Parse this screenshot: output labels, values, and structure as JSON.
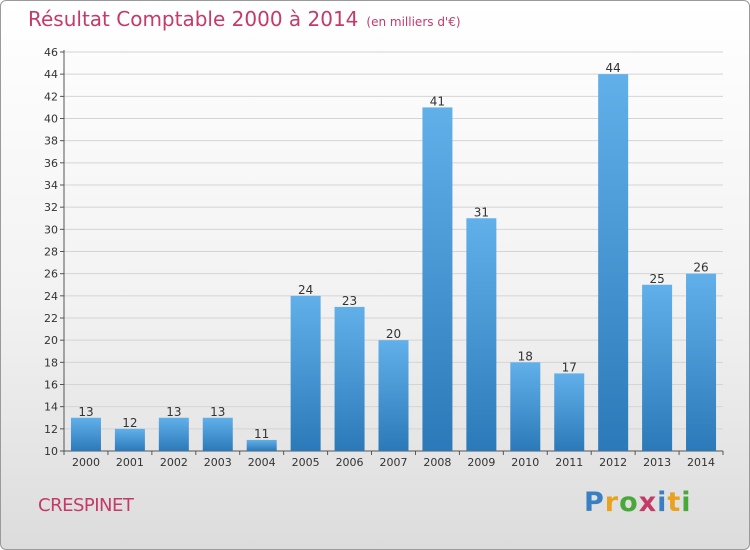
{
  "header": {
    "title": "Résultat Comptable 2000 à 2014",
    "subtitle": "(en milliers d'€)"
  },
  "footer": {
    "commune": "CRESPINET",
    "logo": {
      "text": "Proxiti",
      "letter_colors": [
        "#3a7fc1",
        "#e8a21e",
        "#4aa83a",
        "#c43a68",
        "#3a7fc1",
        "#e8a21e",
        "#4aa83a"
      ]
    }
  },
  "colors": {
    "bar_light": "#62b0ea",
    "bar_dark": "#2b79b8",
    "accent": "#c43a68"
  },
  "chart_data": {
    "type": "bar",
    "title": "Résultat Comptable 2000 à 2014",
    "subtitle": "(en milliers d'€)",
    "categories": [
      "2000",
      "2001",
      "2002",
      "2003",
      "2004",
      "2005",
      "2006",
      "2007",
      "2008",
      "2009",
      "2010",
      "2011",
      "2012",
      "2013",
      "2014"
    ],
    "values": [
      13,
      12,
      13,
      13,
      11,
      24,
      23,
      20,
      41,
      31,
      18,
      17,
      44,
      25,
      26
    ],
    "ylim": [
      10,
      46
    ],
    "yticks": [
      10,
      12,
      14,
      16,
      18,
      20,
      22,
      24,
      26,
      28,
      30,
      32,
      34,
      36,
      38,
      40,
      42,
      44,
      46
    ],
    "grid": true,
    "legend": "none"
  }
}
